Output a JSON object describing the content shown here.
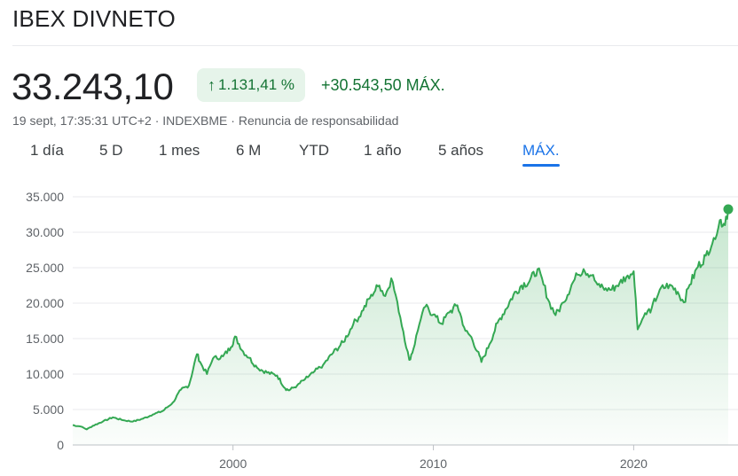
{
  "header": {
    "title": "IBEX DIVNETO",
    "price": "33.243,10",
    "change_percent": "1.131,41 %",
    "change_icon": "arrow-up-icon",
    "change_absolute": "+30.543,50 MÁX.",
    "meta": "19 sept, 17:35:31 UTC+2 · INDEXBME · Renuncia de responsabilidad"
  },
  "tabs": [
    {
      "label": "1 día",
      "active": false
    },
    {
      "label": "5 D",
      "active": false
    },
    {
      "label": "1 mes",
      "active": false
    },
    {
      "label": "6 M",
      "active": false
    },
    {
      "label": "YTD",
      "active": false
    },
    {
      "label": "1 año",
      "active": false
    },
    {
      "label": "5 años",
      "active": false
    },
    {
      "label": "MÁX.",
      "active": true
    }
  ],
  "colors": {
    "positive": "#137333",
    "line": "#34a853",
    "pill_bg": "#e6f4ea",
    "active_tab": "#1a73e8"
  },
  "chart_data": {
    "type": "area",
    "ylim": [
      0,
      35000
    ],
    "xlim": [
      1992.0,
      2024.72
    ],
    "y_ticks": [
      0,
      5000,
      10000,
      15000,
      20000,
      25000,
      30000,
      35000
    ],
    "y_tick_labels": [
      "0",
      "5.000",
      "10.000",
      "15.000",
      "20.000",
      "25.000",
      "30.000",
      "35.000"
    ],
    "x_ticks": [
      2000,
      2010,
      2020
    ],
    "x_tick_labels": [
      "2000",
      "2010",
      "2020"
    ],
    "grid": "horizontal",
    "series": [
      {
        "x": [
          1992.0,
          1992.4,
          1992.7,
          1993.0,
          1993.5,
          1994.0,
          1994.5,
          1995.0,
          1995.5,
          1996.0,
          1996.5,
          1997.0,
          1997.4,
          1997.8,
          1998.2,
          1998.4,
          1998.7,
          1999.0,
          1999.5,
          1999.9,
          2000.1,
          2000.5,
          2000.8,
          2001.2,
          2001.7,
          2002.2,
          2002.6,
          2002.8,
          2003.2,
          2003.6,
          2004.0,
          2004.5,
          2005.0,
          2005.5,
          2006.0,
          2006.5,
          2006.9,
          2007.3,
          2007.6,
          2007.9,
          2008.2,
          2008.5,
          2008.8,
          2009.0,
          2009.3,
          2009.6,
          2010.0,
          2010.4,
          2010.8,
          2011.2,
          2011.6,
          2011.9,
          2012.2,
          2012.4,
          2012.8,
          2013.2,
          2013.6,
          2014.0,
          2014.4,
          2014.8,
          2015.2,
          2015.5,
          2015.8,
          2016.1,
          2016.5,
          2016.9,
          2017.2,
          2017.5,
          2017.9,
          2018.2,
          2018.6,
          2018.9,
          2019.3,
          2019.7,
          2020.0,
          2020.2,
          2020.5,
          2020.9,
          2021.3,
          2021.8,
          2022.2,
          2022.5,
          2022.8,
          2023.2,
          2023.6,
          2024.0,
          2024.3,
          2024.5,
          2024.72
        ],
        "values": [
          2800,
          2600,
          2200,
          2700,
          3300,
          3900,
          3500,
          3300,
          3700,
          4300,
          4800,
          6000,
          7800,
          8400,
          12800,
          11500,
          10000,
          12200,
          12500,
          13800,
          15300,
          13200,
          12300,
          10900,
          10200,
          9800,
          8000,
          7700,
          8400,
          9300,
          10200,
          11300,
          13000,
          14500,
          17000,
          19000,
          21200,
          22500,
          21000,
          23500,
          20200,
          16000,
          12000,
          13500,
          17000,
          19500,
          18400,
          17100,
          18700,
          19700,
          16100,
          15200,
          13200,
          11700,
          14200,
          17200,
          19100,
          21200,
          22500,
          23100,
          24800,
          22600,
          20100,
          18300,
          20100,
          22600,
          24000,
          24800,
          23900,
          22600,
          22100,
          21900,
          22900,
          23900,
          24500,
          16300,
          18100,
          19300,
          21900,
          22600,
          21600,
          20100,
          22600,
          25100,
          26700,
          29200,
          31700,
          31200,
          33243
        ]
      }
    ]
  }
}
